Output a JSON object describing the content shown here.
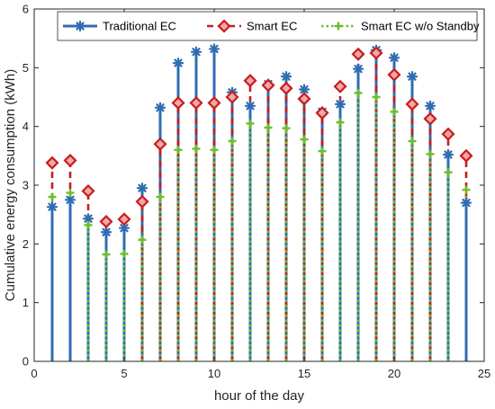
{
  "chart_data": {
    "type": "stem",
    "xlabel": "hour of the day",
    "ylabel": "Cumulative energy consumption (kWh)",
    "xlim": [
      0,
      25
    ],
    "ylim": [
      0,
      6
    ],
    "xticks": [
      "0",
      "5",
      "10",
      "15",
      "20",
      "25"
    ],
    "yticks": [
      "0",
      "1",
      "2",
      "3",
      "4",
      "5",
      "6"
    ],
    "grid": false,
    "legend_position": "top",
    "x": [
      1,
      2,
      3,
      4,
      5,
      6,
      7,
      8,
      9,
      10,
      11,
      12,
      13,
      14,
      15,
      16,
      17,
      18,
      19,
      20,
      21,
      22,
      23,
      24
    ],
    "series": [
      {
        "name": "Traditional EC",
        "color": "#2f6db3",
        "marker": "asterisk",
        "values": [
          2.63,
          2.75,
          2.43,
          2.2,
          2.27,
          2.95,
          4.32,
          5.08,
          5.27,
          5.32,
          4.58,
          4.35,
          4.72,
          4.85,
          4.63,
          4.25,
          4.38,
          4.98,
          5.3,
          5.17,
          4.85,
          4.35,
          3.52,
          2.7
        ]
      },
      {
        "name": "Smart EC",
        "color": "#c81d1d",
        "marker": "diamond",
        "values": [
          3.38,
          3.42,
          2.9,
          2.38,
          2.42,
          2.72,
          3.7,
          4.4,
          4.4,
          4.4,
          4.5,
          4.78,
          4.7,
          4.65,
          4.47,
          4.23,
          4.68,
          5.23,
          5.25,
          4.88,
          4.38,
          4.13,
          3.87,
          3.5
        ]
      },
      {
        "name": "Smart EC w/o Standby",
        "color": "#6bbf2a",
        "marker": "plus",
        "values": [
          2.8,
          2.87,
          2.32,
          1.82,
          1.83,
          2.07,
          2.8,
          3.6,
          3.62,
          3.6,
          3.75,
          4.05,
          3.98,
          3.97,
          3.78,
          3.58,
          4.07,
          4.57,
          4.5,
          4.25,
          3.75,
          3.53,
          3.22,
          2.92
        ]
      }
    ]
  }
}
